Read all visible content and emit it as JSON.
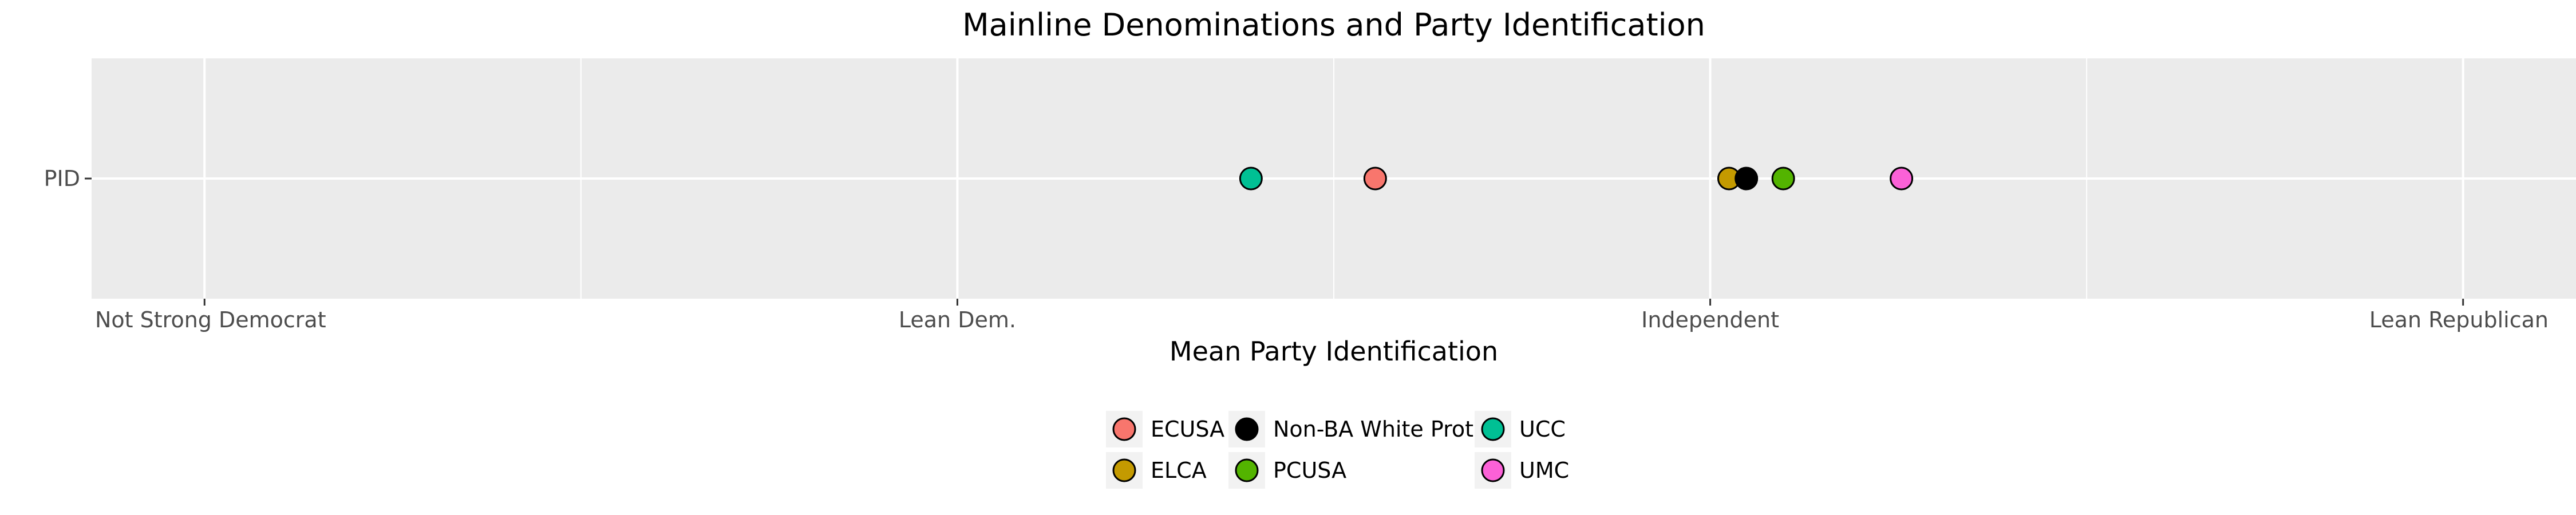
{
  "chart_data": {
    "type": "scatter",
    "title": "Mainline Denominations and Party Identification",
    "xlabel": "Mean Party Identification",
    "ylabel": "",
    "y_category": "PID",
    "xlim": [
      1.85,
      5.15
    ],
    "xticks": [
      {
        "value": 2,
        "label": "Not Strong Democrat"
      },
      {
        "value": 3,
        "label": "Lean Dem."
      },
      {
        "value": 4,
        "label": "Independent"
      },
      {
        "value": 5,
        "label": "Lean Republican"
      }
    ],
    "grid": true,
    "legend_position": "bottom",
    "series": [
      {
        "name": "ECUSA",
        "value": 3.555,
        "color": "#F8766D"
      },
      {
        "name": "ELCA",
        "value": 4.025,
        "color": "#C49A00"
      },
      {
        "name": "Non-BA White Prot.",
        "value": 4.048,
        "color": "#000000"
      },
      {
        "name": "PCUSA",
        "value": 4.097,
        "color": "#53B400"
      },
      {
        "name": "UCC",
        "value": 3.39,
        "color": "#00C094"
      },
      {
        "name": "UMC",
        "value": 4.254,
        "color": "#FB61D7"
      }
    ],
    "legend_columns": [
      [
        "ECUSA",
        "ELCA"
      ],
      [
        "Non-BA White Prot.",
        "PCUSA"
      ],
      [
        "UCC",
        "UMC"
      ]
    ]
  }
}
